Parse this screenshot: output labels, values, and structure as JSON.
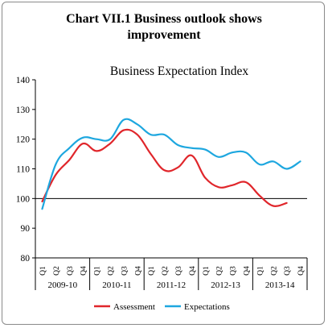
{
  "chart_data": {
    "type": "line",
    "title_lines": [
      "Chart VII.1 Business outlook shows",
      "improvement"
    ],
    "subtitle": "Business Expectation Index",
    "xlabel": "",
    "ylabel": "",
    "ylim": [
      80,
      140
    ],
    "yticks": [
      80,
      90,
      100,
      110,
      120,
      130,
      140
    ],
    "reference_line": 100,
    "quarters": [
      "Q1",
      "Q2",
      "Q3",
      "Q4",
      "Q1",
      "Q2",
      "Q3",
      "Q4",
      "Q1",
      "Q2",
      "Q3",
      "Q4",
      "Q1",
      "Q2",
      "Q3",
      "Q4",
      "Q1",
      "Q2",
      "Q3",
      "Q4"
    ],
    "year_groups": [
      {
        "label": "2009-10",
        "start": 0,
        "end": 3
      },
      {
        "label": "2010-11",
        "start": 4,
        "end": 7
      },
      {
        "label": "2011-12",
        "start": 8,
        "end": 11
      },
      {
        "label": "2012-13",
        "start": 12,
        "end": 15
      },
      {
        "label": "2013-14",
        "start": 16,
        "end": 19
      }
    ],
    "series": [
      {
        "name": "Assessment",
        "color": "#e0262b",
        "values": [
          99,
          108,
          113,
          118.5,
          116,
          118.5,
          123,
          121.5,
          115,
          109.5,
          110.5,
          114.5,
          107,
          103.8,
          104.5,
          105.5,
          101,
          97.5,
          98.5,
          null
        ]
      },
      {
        "name": "Expectations",
        "color": "#1ea7df",
        "values": [
          96.5,
          111.5,
          117,
          120.5,
          120,
          120,
          126.5,
          125,
          121.5,
          121.5,
          118,
          117,
          116.5,
          114,
          115.5,
          115.5,
          111.5,
          112.5,
          110,
          112.5
        ]
      }
    ],
    "legend": {
      "placement": "bottom-center"
    },
    "grid": false
  }
}
